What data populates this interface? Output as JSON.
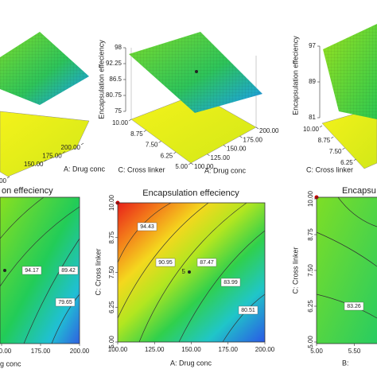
{
  "chart_data": [
    {
      "type": "surface3d",
      "xlabel": "A: Drug conc",
      "xlim": [
        100,
        200
      ],
      "xticks": [
        {
          "value": 100,
          "label": "100.00"
        },
        {
          "value": 150,
          "label": "150.00"
        },
        {
          "value": 175,
          "label": "175.00"
        },
        {
          "value": 200,
          "label": "200.00"
        }
      ]
    },
    {
      "type": "surface3d",
      "zlabel": "Encapsulation effeciency",
      "zlim": [
        75,
        98
      ],
      "zticks": [
        98,
        92.25,
        86.5,
        80.75,
        75
      ],
      "xlabel": "C: Cross linker",
      "xlim": [
        5,
        10
      ],
      "xticks": [
        {
          "value": 10,
          "label": "10.00"
        },
        {
          "value": 8.75,
          "label": "8.75"
        },
        {
          "value": 7.5,
          "label": "7.50"
        },
        {
          "value": 6.25,
          "label": "6.25"
        },
        {
          "value": 5,
          "label": "5.00"
        }
      ],
      "ylabel": "A: Drug conc",
      "ylim": [
        100,
        200
      ],
      "yticks": [
        {
          "value": 100,
          "label": "100.00"
        },
        {
          "value": 125,
          "label": "125.00"
        },
        {
          "value": 150,
          "label": "150.00"
        },
        {
          "value": 175,
          "label": "175.00"
        },
        {
          "value": 200,
          "label": "200.00"
        }
      ]
    },
    {
      "type": "surface3d",
      "zlabel": "Encapsulation effeciency",
      "zlim": [
        81,
        97
      ],
      "zticks": [
        97,
        89,
        81
      ],
      "xlabel": "C: Cross linker",
      "xlim": [
        5,
        10
      ],
      "xticks": [
        {
          "value": 10,
          "label": "10.00"
        },
        {
          "value": 8.75,
          "label": "8.75"
        },
        {
          "value": 7.5,
          "label": "7.50"
        },
        {
          "value": 6.25,
          "label": "6.25"
        }
      ]
    },
    {
      "type": "contour",
      "title": "on effeciency",
      "xlabel": "g conc",
      "xlim": [
        150,
        200
      ],
      "xticks": [
        {
          "value": 150,
          "label": "150.00"
        },
        {
          "value": 175,
          "label": "175.00"
        },
        {
          "value": 200,
          "label": "200.00"
        }
      ],
      "contour_labels": [
        94.17,
        89.42,
        79.65
      ]
    },
    {
      "type": "contour",
      "title": "Encapsulation effeciency",
      "xlabel": "A: Drug conc",
      "ylabel": "C: Cross linker",
      "xlim": [
        100,
        200
      ],
      "xticks": [
        {
          "value": 100,
          "label": "100.00"
        },
        {
          "value": 125,
          "label": "125.00"
        },
        {
          "value": 150,
          "label": "150.00"
        },
        {
          "value": 175,
          "label": "175.00"
        },
        {
          "value": 200,
          "label": "200.00"
        }
      ],
      "ylim": [
        5,
        10
      ],
      "yticks": [
        {
          "value": 5,
          "label": "5.00"
        },
        {
          "value": 6.25,
          "label": "6.25"
        },
        {
          "value": 7.5,
          "label": "7.50"
        },
        {
          "value": 8.75,
          "label": "8.75"
        },
        {
          "value": 10,
          "label": "10.00"
        }
      ],
      "contour_labels": [
        94.43,
        90.95,
        87.47,
        83.99,
        80.51
      ],
      "design_point_label": "5"
    },
    {
      "type": "contour",
      "title": "Encapsu",
      "xlabel": "B:",
      "ylabel": "C: Cross linker",
      "xlim": [
        5,
        5.8
      ],
      "xticks": [
        {
          "value": 5,
          "label": "5.00"
        },
        {
          "value": 5.5,
          "label": "5.50"
        }
      ],
      "ylim": [
        5,
        10
      ],
      "yticks": [
        {
          "value": 5,
          "label": "5.00"
        },
        {
          "value": 6.25,
          "label": "6.25"
        },
        {
          "value": 7.5,
          "label": "7.50"
        },
        {
          "value": 8.75,
          "label": "8.75"
        },
        {
          "value": 10,
          "label": "10.00"
        }
      ],
      "contour_labels": [
        83.26
      ]
    }
  ]
}
